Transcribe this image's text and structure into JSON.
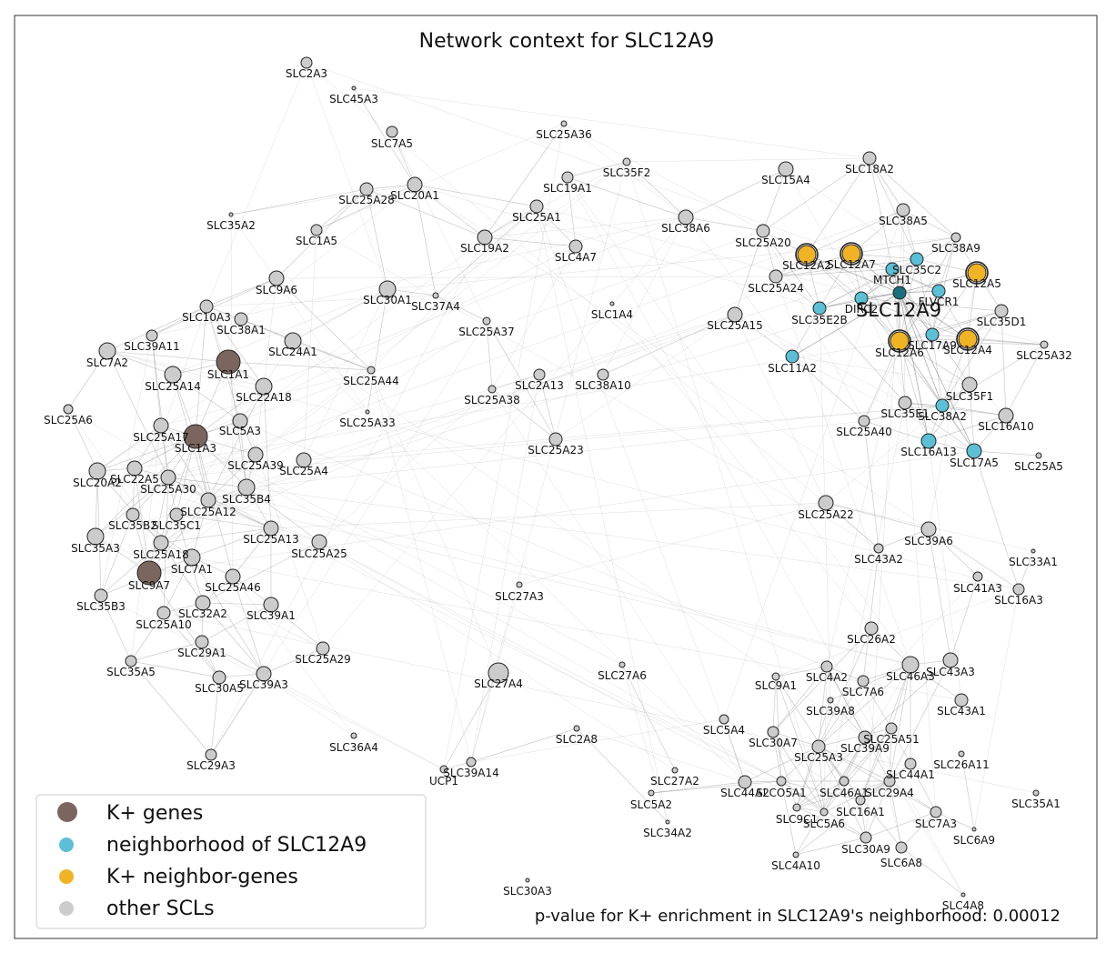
{
  "title": "Network context for SLC12A9",
  "footer": "p-value for K+ enrichment in SLC12A9's neighborhood: 0.00012",
  "center_label": "SLC12A9",
  "colors": {
    "kplus": "#7a665e",
    "neighborhood": "#5bbfd6",
    "kneighbor": "#f0b323",
    "other": "#cccccc",
    "center": "#1b6e7e",
    "edge": "#a0a0a0"
  },
  "legend": [
    {
      "label": "K+ genes",
      "kind": "kplus"
    },
    {
      "label": "neighborhood of SLC12A9",
      "kind": "neighborhood"
    },
    {
      "label": "K+ neighbor-genes",
      "kind": "kneighbor"
    },
    {
      "label": "other SCLs",
      "kind": "other"
    }
  ],
  "node_labels": [
    "SLC2A3",
    "SLC45A3",
    "SLC7A5",
    "SLC25A36",
    "SLC35F2",
    "SLC19A1",
    "SLC25A28",
    "SLC20A1",
    "SLC25A1",
    "SLC35A2",
    "SLC1A5",
    "SLC19A2",
    "SLC4A7",
    "SLC9A6",
    "SLC30A1",
    "SLC37A4",
    "SLC10A3",
    "SLC38A1",
    "SLC25A37",
    "SLC1A4",
    "SLC39A11",
    "SLC7A2",
    "SLC1A1",
    "SLC24A1",
    "SLC25A14",
    "SLC25A44",
    "SLC22A18",
    "SLC2A13",
    "SLC38A10",
    "SLC25A38",
    "SLC25A6",
    "SLC25A33",
    "SLC5A3",
    "SLC25A17",
    "SLC1A3",
    "SLC25A23",
    "SLC25A39",
    "SLC25A4",
    "SLC20A2",
    "SLC22A5",
    "SLC25A30",
    "SLC35B4",
    "SLC25A12",
    "SLC35B2",
    "SLC35C1",
    "SLC35A3",
    "SLC25A13",
    "SLC25A18",
    "SLC25A25",
    "SLC7A1",
    "SLC9A7",
    "SLC25A46",
    "SLC35B3",
    "SLC32A2",
    "SLC39A1",
    "SLC25A10",
    "SLC29A1",
    "SLC25A29",
    "SLC35A5",
    "SLC30A5",
    "SLC39A3",
    "SLC27A3",
    "SLC27A4",
    "SLC27A6",
    "SLC36A4",
    "SLC2A8",
    "SLC29A3",
    "SLC39A14",
    "UCP1",
    "SLC27A2",
    "SLC5A2",
    "SLC34A2",
    "SLC30A3",
    "SLC15A4",
    "SLC18A2",
    "SLC38A6",
    "SLC38A5",
    "SLC25A20",
    "SLC38A9",
    "SLC12A2",
    "SLC12A7",
    "SLC35C2",
    "MTCH1",
    "SLC12A5",
    "SLC25A24",
    "DIRC2",
    "FLVCR1",
    "SLC35E2B",
    "SLC25A15",
    "SLC35D1",
    "SLC12A6",
    "SLC17A9",
    "SLC12A4",
    "SLC25A32",
    "SLC11A2",
    "SLC35F1",
    "SLC35E1",
    "SLC38A2",
    "SLC16A10",
    "SLC25A40",
    "SLC16A13",
    "SLC17A5",
    "SLC25A5",
    "SLC25A22",
    "SLC39A6",
    "SLC43A2",
    "SLC33A1",
    "SLC41A3",
    "SLC16A3",
    "SLC26A2",
    "SLC4A2",
    "SLC46A3",
    "SLC43A3",
    "SLC9A1",
    "SLC7A6",
    "SLC39A8",
    "SLC43A1",
    "SLC5A4",
    "SLC30A7",
    "SLC25A51",
    "SLC25A3",
    "SLC39A9",
    "SLC26A11",
    "SLC44A1",
    "SLC44A2",
    "SLCO5A1",
    "SLC46A1",
    "SLC29A4",
    "SLC35A1",
    "SLC16A1",
    "SLC9C1",
    "SLC5A6",
    "SLC7A3",
    "SLC6A9",
    "SLC30A9",
    "SLC6A8",
    "SLC4A10",
    "SLC4A8"
  ]
}
